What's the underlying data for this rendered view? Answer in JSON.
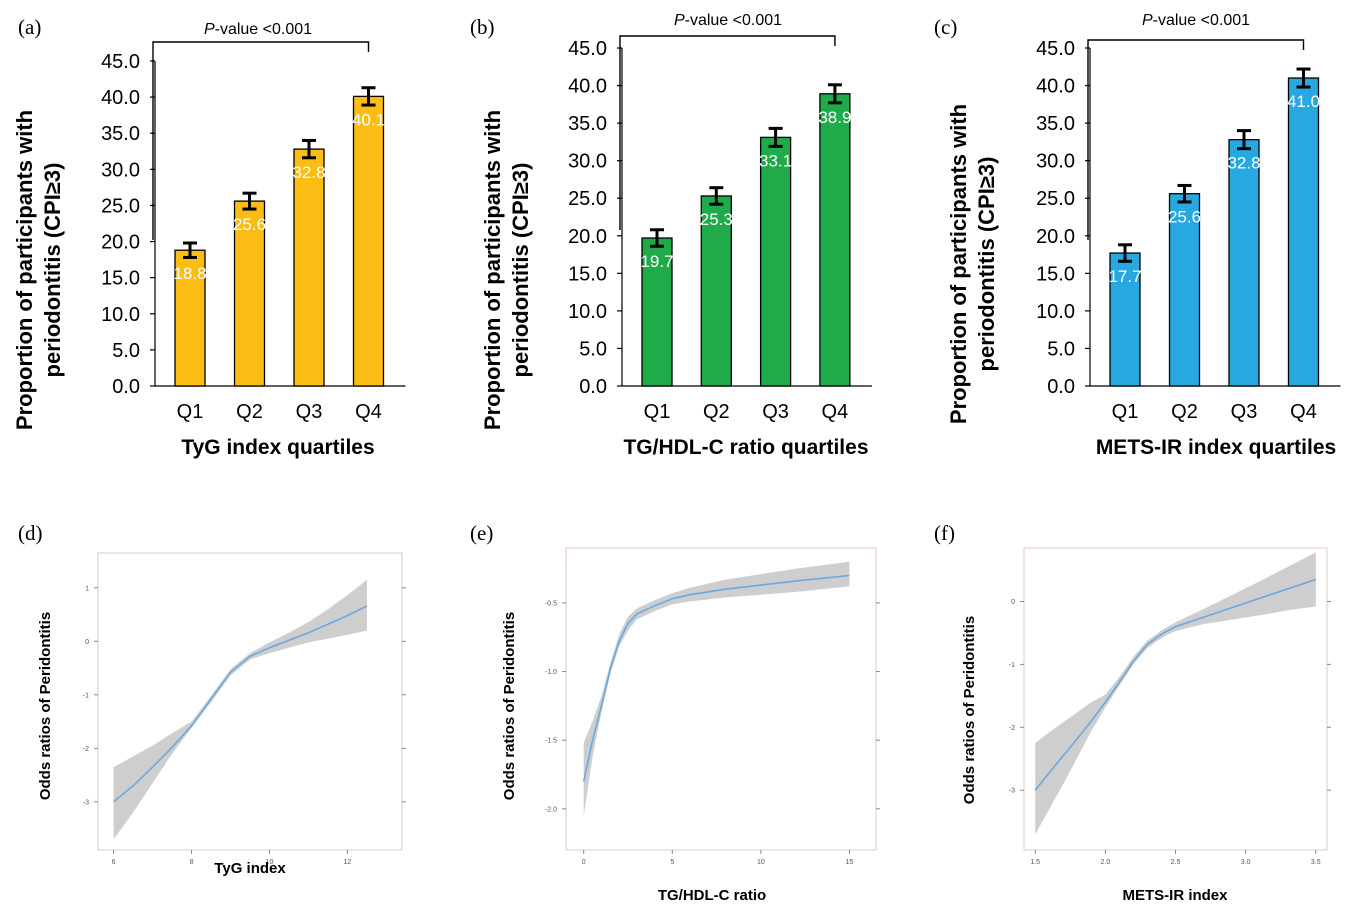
{
  "panels": [
    {
      "label": "(a)"
    },
    {
      "label": "(b)"
    },
    {
      "label": "(c)"
    },
    {
      "label": "(d)"
    },
    {
      "label": "(e)"
    },
    {
      "label": "(f)"
    }
  ],
  "chart_data": [
    {
      "type": "bar",
      "panel": "(a)",
      "categories": [
        "Q1",
        "Q2",
        "Q3",
        "Q4"
      ],
      "values": [
        18.8,
        25.6,
        32.8,
        40.1
      ],
      "value_labels": [
        "18.8",
        "25.6",
        "32.8",
        "40.1"
      ],
      "error": [
        1.0,
        1.1,
        1.2,
        1.2
      ],
      "color": "#FBBC13",
      "ylabel_line1": "Proportion of participants with",
      "ylabel_line2": "periodontitis (CPI≥3)",
      "xlabel": "TyG index quartiles",
      "annotation_italic": "P",
      "annotation_rest": "-value <0.001",
      "ylim": [
        0,
        45
      ],
      "yticks": [
        "0.0",
        "5.0",
        "10.0",
        "15.0",
        "20.0",
        "25.0",
        "30.0",
        "35.0",
        "40.0",
        "45.0"
      ]
    },
    {
      "type": "bar",
      "panel": "(b)",
      "categories": [
        "Q1",
        "Q2",
        "Q3",
        "Q4"
      ],
      "values": [
        19.7,
        25.3,
        33.1,
        38.9
      ],
      "value_labels": [
        "19.7",
        "25.3",
        "33.1",
        "38.9"
      ],
      "error": [
        1.1,
        1.1,
        1.2,
        1.2
      ],
      "color": "#1FAB4A",
      "ylabel_line1": "Proportion of participants with",
      "ylabel_line2": "periodontitis (CPI≥3)",
      "xlabel": "TG/HDL-C ratio quartiles",
      "annotation_italic": "P",
      "annotation_rest": "-value <0.001",
      "ylim": [
        0,
        45
      ],
      "yticks": [
        "0.0",
        "5.0",
        "10.0",
        "15.0",
        "20.0",
        "25.0",
        "30.0",
        "35.0",
        "40.0",
        "45.0"
      ]
    },
    {
      "type": "bar",
      "panel": "(c)",
      "categories": [
        "Q1",
        "Q2",
        "Q3",
        "Q4"
      ],
      "values": [
        17.7,
        25.6,
        32.8,
        41.0
      ],
      "value_labels": [
        "17.7",
        "25.6",
        "32.8",
        "41.0"
      ],
      "error": [
        1.1,
        1.1,
        1.2,
        1.2
      ],
      "color": "#27A8E1",
      "ylabel_line1": "Proportion of participants with",
      "ylabel_line2": "periodontitis (CPI≥3)",
      "xlabel": "METS-IR index quartiles",
      "annotation_italic": "P",
      "annotation_rest": "-value <0.001",
      "ylim": [
        0,
        45
      ],
      "yticks": [
        "0.0",
        "5.0",
        "10.0",
        "15.0",
        "20.0",
        "25.0",
        "30.0",
        "35.0",
        "40.0",
        "45.0"
      ]
    },
    {
      "type": "line",
      "panel": "(d)",
      "ylabel": "Odds ratios of Peridontitis",
      "xlabel": "TyG index",
      "xlim": [
        5.6,
        13.4
      ],
      "ylim": [
        -3.9,
        1.65
      ],
      "xticks": [
        6,
        8,
        10,
        12
      ],
      "xtick_labels": [
        "6",
        "8",
        "10",
        "12"
      ],
      "yticks": [
        -3,
        -2,
        -1,
        0,
        1
      ],
      "ytick_labels": [
        "-3",
        "-2",
        "-1",
        "0",
        "1"
      ],
      "x": [
        6.0,
        6.5,
        7.0,
        7.5,
        8.0,
        8.5,
        9.0,
        9.5,
        10.0,
        10.5,
        11.0,
        11.5,
        12.0,
        12.5
      ],
      "y": [
        -3.0,
        -2.7,
        -2.35,
        -1.98,
        -1.58,
        -1.08,
        -0.58,
        -0.28,
        -0.12,
        0.02,
        0.16,
        0.32,
        0.48,
        0.66
      ],
      "lower": [
        -3.7,
        -3.2,
        -2.65,
        -2.1,
        -1.62,
        -1.14,
        -0.64,
        -0.34,
        -0.22,
        -0.12,
        -0.02,
        0.05,
        0.12,
        0.2
      ],
      "upper": [
        -2.35,
        -2.15,
        -1.95,
        -1.72,
        -1.5,
        -1.02,
        -0.52,
        -0.22,
        -0.02,
        0.16,
        0.36,
        0.6,
        0.86,
        1.15
      ],
      "line_color": "#6AA8DF",
      "band_color": "#C9C9C9"
    },
    {
      "type": "line",
      "panel": "(e)",
      "ylabel": "Odds ratios of Peridontitis",
      "xlabel": "TG/HDL-C ratio",
      "xlim": [
        -1.0,
        16.5
      ],
      "ylim": [
        -2.3,
        -0.1
      ],
      "xticks": [
        0,
        5,
        10,
        15
      ],
      "xtick_labels": [
        "0",
        "5",
        "10",
        "15"
      ],
      "yticks": [
        -2.0,
        -1.5,
        -1.0,
        -0.5
      ],
      "ytick_labels": [
        "-2.0",
        "-1.5",
        "-1.0",
        "-0.5"
      ],
      "x": [
        0.0,
        0.5,
        1.0,
        1.5,
        2.0,
        2.5,
        3.0,
        4.0,
        5.0,
        6.0,
        8.0,
        10.0,
        12.0,
        15.0
      ],
      "y": [
        -1.8,
        -1.5,
        -1.25,
        -0.98,
        -0.78,
        -0.65,
        -0.58,
        -0.52,
        -0.47,
        -0.44,
        -0.4,
        -0.37,
        -0.34,
        -0.3
      ],
      "lower": [
        -2.05,
        -1.62,
        -1.3,
        -1.02,
        -0.82,
        -0.7,
        -0.62,
        -0.56,
        -0.51,
        -0.49,
        -0.46,
        -0.44,
        -0.42,
        -0.38
      ],
      "upper": [
        -1.52,
        -1.36,
        -1.18,
        -0.94,
        -0.73,
        -0.6,
        -0.54,
        -0.48,
        -0.43,
        -0.39,
        -0.33,
        -0.29,
        -0.25,
        -0.2
      ],
      "line_color": "#6AA8DF",
      "band_color": "#C9C9C9"
    },
    {
      "type": "line",
      "panel": "(f)",
      "ylabel": "Odds ratios of Peridontitis",
      "xlabel": "METS-IR index",
      "xlim": [
        1.42,
        3.58
      ],
      "ylim": [
        -3.95,
        0.85
      ],
      "xticks": [
        1.5,
        2.0,
        2.5,
        3.0,
        3.5
      ],
      "xtick_labels": [
        "1.5",
        "2.0",
        "2.5",
        "3.0",
        "3.5"
      ],
      "yticks": [
        -3,
        -2,
        -1,
        0
      ],
      "ytick_labels": [
        "-3",
        "-2",
        "-1",
        "0"
      ],
      "x": [
        1.5,
        1.6,
        1.7,
        1.8,
        1.9,
        2.0,
        2.1,
        2.2,
        2.3,
        2.4,
        2.5,
        2.7,
        2.9,
        3.1,
        3.3,
        3.5
      ],
      "y": [
        -3.0,
        -2.72,
        -2.45,
        -2.18,
        -1.9,
        -1.6,
        -1.28,
        -0.95,
        -0.68,
        -0.52,
        -0.4,
        -0.25,
        -0.1,
        0.05,
        0.2,
        0.35
      ],
      "lower": [
        -3.7,
        -3.3,
        -2.9,
        -2.48,
        -2.06,
        -1.68,
        -1.34,
        -1.0,
        -0.74,
        -0.58,
        -0.47,
        -0.36,
        -0.29,
        -0.22,
        -0.14,
        -0.08
      ],
      "upper": [
        -2.25,
        -2.08,
        -1.92,
        -1.76,
        -1.6,
        -1.48,
        -1.2,
        -0.88,
        -0.62,
        -0.46,
        -0.33,
        -0.12,
        0.1,
        0.32,
        0.55,
        0.78
      ],
      "line_color": "#6AA8DF",
      "band_color": "#C9C9C9"
    }
  ]
}
